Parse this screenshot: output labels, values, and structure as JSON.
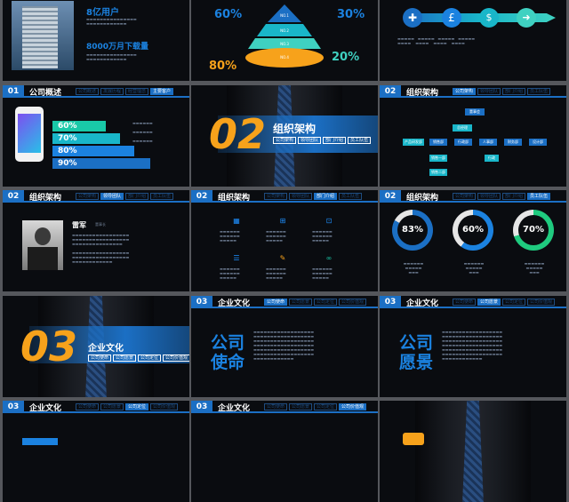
{
  "slide1": {
    "stat1": "8亿用户",
    "stat2": "8000万月下载量"
  },
  "slide2": {
    "percents": {
      "tl": "60%",
      "tr": "30%",
      "bl": "80%",
      "br": "20%"
    },
    "layers": [
      "NO.1",
      "NO.2",
      "NO.3",
      "NO.4"
    ]
  },
  "slide4": {
    "num": "01",
    "title": "公司概述",
    "tabs": [
      "公司概述",
      "发展历程",
      "经营理念",
      "主要客户"
    ],
    "bars": [
      "60%",
      "70%",
      "80%",
      "90%"
    ]
  },
  "slide5": {
    "num": "02",
    "title": "组织架构",
    "tabs": [
      "公司架构",
      "领导团队",
      "部门介绍",
      "员工队伍"
    ]
  },
  "slide6": {
    "num": "02",
    "title": "组织架构",
    "tabs": [
      "公司架构",
      "领导团队",
      "部门介绍",
      "员工队伍"
    ],
    "org": {
      "top": "董事会",
      "l2": "总经理",
      "l3": [
        "产品研发部",
        "销售部",
        "行政部",
        "人事部",
        "财务部",
        "设计部"
      ],
      "l4a": "销售一部",
      "l4b": "销售二部",
      "l4c": "行政"
    }
  },
  "slide7": {
    "num": "02",
    "title": "组织架构",
    "tabs": [
      "公司架构",
      "领导团队",
      "部门介绍",
      "员工队伍"
    ],
    "name": "雷军",
    "role": "董事长"
  },
  "slide8": {
    "num": "02",
    "title": "组织架构",
    "tabs": [
      "公司架构",
      "领导团队",
      "部门介绍",
      "员工队伍"
    ]
  },
  "slide9": {
    "num": "02",
    "title": "组织架构",
    "tabs": [
      "公司架构",
      "领导团队",
      "部门介绍",
      "员工队伍"
    ],
    "rings": [
      "83%",
      "60%",
      "70%"
    ],
    "colors": {
      "r1": "#1b6fc4",
      "r2": "#1b82e0",
      "r3": "#1fcb7f"
    }
  },
  "slide10": {
    "num": "03",
    "title": "企业文化",
    "tabs": [
      "公司使命",
      "公司愿景",
      "公司定位",
      "公司价值观"
    ]
  },
  "slide11": {
    "num": "03",
    "title": "企业文化",
    "tabs": [
      "公司使命",
      "公司愿景",
      "公司定位",
      "公司价值观"
    ],
    "big": [
      "公司",
      "使命"
    ]
  },
  "slide12": {
    "num": "03",
    "title": "企业文化",
    "tabs": [
      "公司使命",
      "公司愿景",
      "公司定位",
      "公司价值观"
    ],
    "big": [
      "公司",
      "愿景"
    ]
  },
  "slide13": {
    "num": "03",
    "title": "企业文化",
    "tabs": [
      "公司使命",
      "公司愿景",
      "公司定位",
      "公司价值观"
    ]
  },
  "slide14": {
    "num": "03",
    "title": "企业文化",
    "tabs": [
      "公司使命",
      "公司愿景",
      "公司定位",
      "公司价值观"
    ]
  }
}
